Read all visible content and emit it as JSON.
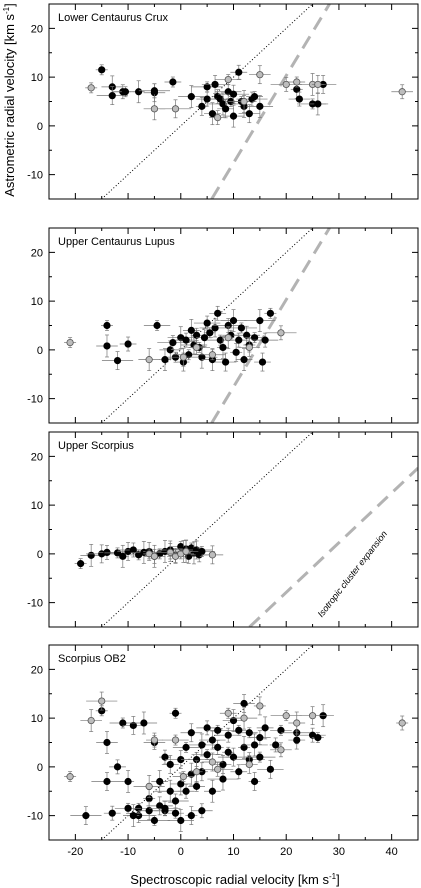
{
  "figure": {
    "xlabel": "Spectroscopic radial velocity [km s",
    "xlabel_sup": "-1",
    "xlabel_tail": "]",
    "ylabel": "Astrometric radial velocity [km s",
    "ylabel_sup": "-1",
    "ylabel_tail": "]"
  },
  "chart_data": [
    {
      "type": "scatter",
      "title": "Lower Centaurus Crux",
      "xlim": [
        -25,
        45
      ],
      "ylim": [
        -15,
        25
      ],
      "xticks": [
        -20,
        -10,
        0,
        10,
        20,
        30,
        40
      ],
      "yticks": [
        -10,
        0,
        10,
        20
      ],
      "show_xticklabels": false,
      "series": [
        {
          "marker": "filled-black",
          "x": [
            -15,
            -13,
            -13,
            -11,
            -10.5,
            -8,
            -5,
            -5,
            -1.5,
            2,
            4,
            5,
            5,
            6,
            6.5,
            7,
            7.5,
            8,
            8.5,
            9,
            9.5,
            10,
            10,
            11,
            11.5,
            12,
            13,
            13.5,
            14,
            15,
            22,
            22.5,
            25,
            26,
            27
          ],
          "y": [
            11.5,
            8,
            6.2,
            7,
            7,
            7,
            6.8,
            7.2,
            9,
            6,
            4,
            5.5,
            8,
            2.5,
            8.5,
            6,
            5.5,
            4.5,
            3.5,
            7,
            5,
            2,
            6.5,
            11,
            5,
            4,
            2.5,
            5.5,
            6,
            4,
            7.5,
            5.5,
            4.5,
            4.5,
            8.5
          ]
        },
        {
          "marker": "open-gray",
          "x": [
            -17,
            -5,
            -1,
            7,
            9,
            12,
            15,
            20,
            22,
            25,
            26,
            42
          ],
          "y": [
            7.8,
            3.5,
            3.5,
            1.7,
            9.5,
            5,
            10.5,
            8.5,
            9,
            8.5,
            8.5,
            7
          ]
        }
      ],
      "reference_lines": [
        {
          "name": "one-to-one",
          "style": "dotted",
          "slope": 1,
          "intercept": 0
        },
        {
          "name": "isotropic-expansion",
          "style": "dashed",
          "slope": 1.79,
          "intercept": -25.5
        }
      ]
    },
    {
      "type": "scatter",
      "title": "Upper Centaurus Lupus",
      "xlim": [
        -25,
        45
      ],
      "ylim": [
        -15,
        25
      ],
      "xticks": [
        -20,
        -10,
        0,
        10,
        20,
        30,
        40
      ],
      "yticks": [
        -10,
        0,
        10,
        20
      ],
      "show_xticklabels": false,
      "series": [
        {
          "marker": "filled-black",
          "x": [
            -14,
            -14,
            -12,
            -10,
            -4.5,
            -3,
            -2,
            -1.5,
            -1,
            0,
            0.5,
            1,
            1.5,
            2,
            2.5,
            3,
            3.5,
            4,
            4.5,
            5,
            5.5,
            6,
            6.5,
            7,
            7.5,
            8,
            8.5,
            9,
            9.5,
            10,
            10.5,
            11,
            11.5,
            12,
            12.5,
            13,
            14,
            15,
            15.5,
            16,
            17
          ],
          "y": [
            5,
            0.8,
            -2.2,
            1.2,
            5,
            -2,
            0,
            1.5,
            -1.5,
            2.5,
            -2.5,
            2,
            -1,
            4,
            1,
            3,
            0.5,
            -1.5,
            2.5,
            5.5,
            3.5,
            -2,
            4.5,
            7.5,
            2,
            0.5,
            -2.5,
            5,
            3,
            6,
            -0.5,
            2,
            4.5,
            -2,
            3,
            1,
            2.5,
            6,
            -2.5,
            2,
            7.5
          ]
        },
        {
          "marker": "open-gray",
          "x": [
            -21,
            -6,
            0.5,
            3,
            6,
            9,
            13,
            19
          ],
          "y": [
            1.5,
            -2,
            -1.5,
            0.5,
            -1,
            2.5,
            0.5,
            3.5
          ]
        }
      ],
      "reference_lines": [
        {
          "name": "one-to-one",
          "style": "dotted",
          "slope": 1,
          "intercept": 0
        },
        {
          "name": "isotropic-expansion",
          "style": "dashed",
          "slope": 1.79,
          "intercept": -25.5
        }
      ]
    },
    {
      "type": "scatter",
      "title": "Upper Scorpius",
      "xlim": [
        -25,
        45
      ],
      "ylim": [
        -15,
        25
      ],
      "xticks": [
        -20,
        -10,
        0,
        10,
        20,
        30,
        40
      ],
      "yticks": [
        -10,
        0,
        10,
        20
      ],
      "show_xticklabels": false,
      "annotation": "Isotropic cluster expansion",
      "series": [
        {
          "marker": "filled-black",
          "x": [
            -19,
            -17,
            -15,
            -14,
            -12,
            -11,
            -10,
            -9,
            -8,
            -7,
            -6,
            -5,
            -4,
            -3,
            -2,
            -1,
            0,
            0.5,
            1,
            1.5,
            2,
            2.5,
            3,
            3.5,
            4
          ],
          "y": [
            -2,
            -0.3,
            0,
            0.3,
            0.2,
            -0.5,
            0.5,
            0.8,
            -0.2,
            0.3,
            0.5,
            -0.5,
            0,
            0.5,
            0.8,
            -0.3,
            1.5,
            0.5,
            1,
            -0.5,
            1.2,
            0.2,
            0.8,
            -0.2,
            0.5
          ]
        },
        {
          "marker": "open-gray",
          "x": [
            -6,
            -5,
            -2,
            -1,
            0,
            1,
            6
          ],
          "y": [
            0,
            -0.5,
            0.3,
            -0.5,
            0,
            0.5,
            -0.2
          ]
        }
      ],
      "reference_lines": [
        {
          "name": "one-to-one",
          "style": "dotted",
          "slope": 1,
          "intercept": 0
        },
        {
          "name": "isotropic-expansion",
          "style": "dashed",
          "slope": 1.02,
          "intercept": -28.3
        }
      ]
    },
    {
      "type": "scatter",
      "title": "Scorpius OB2",
      "xlim": [
        -25,
        45
      ],
      "ylim": [
        -15,
        25
      ],
      "xticks": [
        -20,
        -10,
        0,
        10,
        20,
        30,
        40
      ],
      "yticks": [
        -10,
        0,
        10,
        20
      ],
      "show_xticklabels": true,
      "series": [
        {
          "marker": "filled-black",
          "x": [
            -15,
            -14,
            -14,
            -12,
            -11,
            -10,
            -9,
            -8,
            -8,
            -7,
            -6,
            -5,
            -5,
            -4,
            -4,
            -3,
            -3,
            -2,
            -2,
            -1,
            -1,
            0,
            0,
            1,
            1,
            2,
            2,
            3,
            3,
            4,
            4,
            5,
            5,
            6,
            6,
            7,
            7,
            8,
            8,
            9,
            9,
            10,
            10,
            11,
            11,
            12,
            12,
            13,
            13,
            14,
            14,
            15,
            15,
            16,
            17,
            18,
            19,
            22,
            22,
            25,
            26,
            27,
            -18,
            -13,
            -10,
            -9,
            -6,
            -3,
            -1,
            0,
            2,
            4
          ],
          "y": [
            11.5,
            5,
            -3,
            0,
            9,
            -3,
            8.5,
            -10,
            -8.5,
            9,
            -6.5,
            5,
            -11,
            -3,
            -8,
            2,
            -9,
            -5,
            0.5,
            -7,
            11,
            -3.5,
            1.5,
            -5,
            4,
            -1.5,
            7,
            1.5,
            -4,
            4.5,
            -1,
            8,
            2.5,
            -5,
            5.5,
            4,
            7.5,
            -2.5,
            0.5,
            6.5,
            3,
            9.5,
            2,
            -1,
            7.5,
            4,
            13,
            1.5,
            7,
            4.5,
            -3,
            6,
            2,
            8,
            -0.5,
            4.5,
            7.5,
            7,
            5.5,
            6.5,
            6,
            10.5,
            -10,
            -9.5,
            -8.5,
            -10,
            -9,
            -8.5,
            -9.5,
            -11,
            -10,
            -9
          ]
        },
        {
          "marker": "open-gray",
          "x": [
            -21,
            -17,
            -15,
            -5,
            -1,
            3,
            6,
            7,
            9,
            12,
            15,
            19,
            20,
            22,
            25,
            42,
            0.5,
            -6,
            13
          ],
          "y": [
            -2,
            9.5,
            13.5,
            5.5,
            5.5,
            -1,
            1,
            -0.5,
            11,
            10,
            12.5,
            3.5,
            10.5,
            9,
            10.5,
            9,
            -2,
            -4,
            0.5
          ]
        }
      ],
      "reference_lines": [
        {
          "name": "one-to-one",
          "style": "dotted",
          "slope": 1,
          "intercept": 0
        }
      ]
    }
  ]
}
